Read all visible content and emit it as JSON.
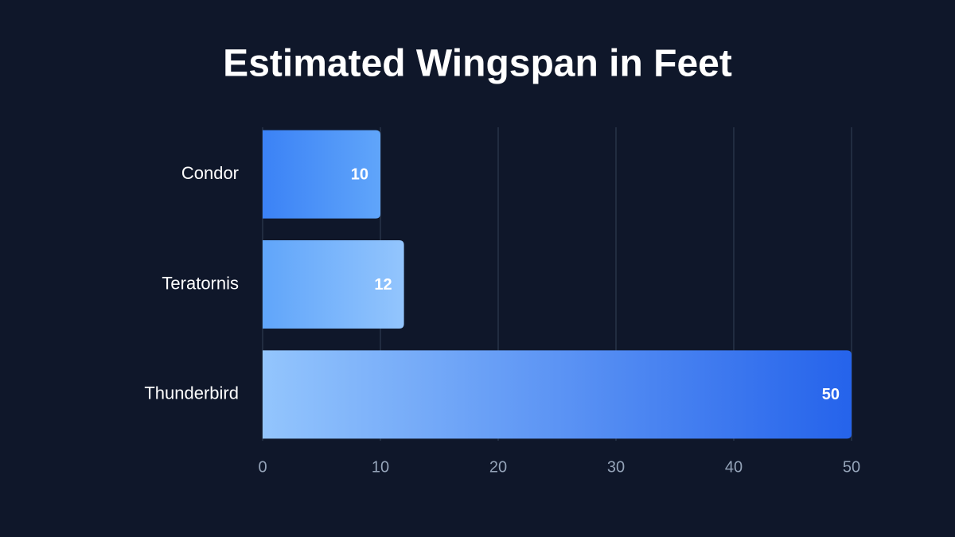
{
  "chart_data": {
    "type": "bar",
    "orientation": "horizontal",
    "title": "Estimated Wingspan in Feet",
    "categories": [
      "Condor",
      "Teratornis",
      "Thunderbird"
    ],
    "values": [
      10,
      12,
      50
    ],
    "colors": [
      [
        "#3b82f6",
        "#60a5fa"
      ],
      [
        "#60a5fa",
        "#93c5fd"
      ],
      [
        "#93c5fd",
        "#2563eb"
      ]
    ],
    "xlim": [
      0,
      50
    ],
    "xticks": [
      0,
      10,
      20,
      30,
      40,
      50
    ],
    "grid": true
  }
}
